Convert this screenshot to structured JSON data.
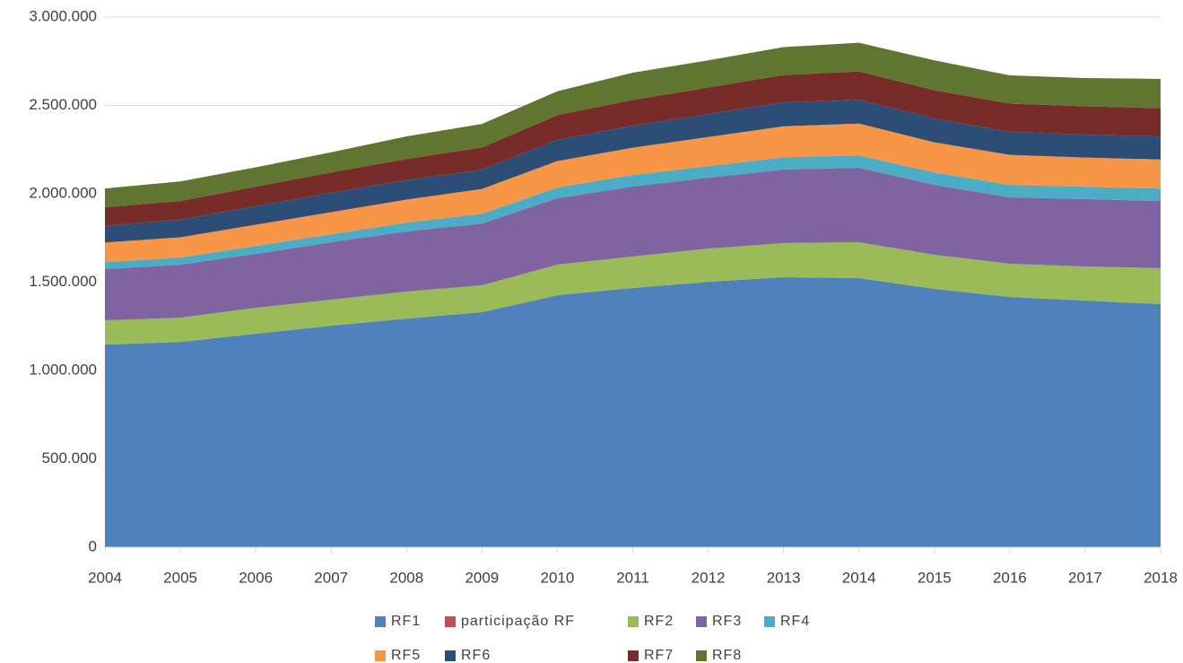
{
  "chart_data": {
    "type": "stacked-area",
    "categories": [
      "2004",
      "2005",
      "2006",
      "2007",
      "2008",
      "2009",
      "2010",
      "2011",
      "2012",
      "2013",
      "2014",
      "2015",
      "2016",
      "2017",
      "2018"
    ],
    "ylim": [
      0,
      3000000
    ],
    "yticks": [
      0,
      {
        "value": 500000,
        "label": "500.000"
      },
      {
        "value": 1000000,
        "label": "1.000.000"
      },
      {
        "value": 1500000,
        "label": "1.500.000"
      },
      {
        "value": 2000000,
        "label": "2.000.000"
      },
      {
        "value": 2500000,
        "label": "2.500.000"
      },
      {
        "value": 3000000,
        "label": "3.000.000"
      }
    ],
    "grid": true,
    "series": [
      {
        "name": "RF1",
        "color": "#4f81bd",
        "values": [
          1147000,
          1162000,
          1208000,
          1254000,
          1294000,
          1330000,
          1426000,
          1467000,
          1502000,
          1528000,
          1523000,
          1462000,
          1416000,
          1396000,
          1376000
        ]
      },
      {
        "name": "participação RF",
        "color": "#c0504d",
        "values": [
          0,
          0,
          0,
          0,
          0,
          0,
          0,
          0,
          0,
          0,
          0,
          0,
          0,
          0,
          0
        ]
      },
      {
        "name": "RF2",
        "color": "#9bbb59",
        "values": [
          137000,
          137000,
          147000,
          147000,
          153000,
          152000,
          173000,
          178000,
          188000,
          193000,
          203000,
          193000,
          188000,
          193000,
          203000
        ]
      },
      {
        "name": "RF3",
        "color": "#8064a2",
        "values": [
          290000,
          300000,
          305000,
          325000,
          340000,
          350000,
          376000,
          396000,
          401000,
          416000,
          421000,
          396000,
          376000,
          381000,
          380000
        ]
      },
      {
        "name": "RF4",
        "color": "#4bacc6",
        "values": [
          40000,
          40000,
          45000,
          45000,
          50000,
          55000,
          60000,
          65000,
          65000,
          70000,
          70000,
          70000,
          70000,
          70000,
          70000
        ]
      },
      {
        "name": "RF5",
        "color": "#f79646",
        "values": [
          110000,
          115000,
          120000,
          125000,
          130000,
          140000,
          150000,
          155000,
          165000,
          175000,
          180000,
          170000,
          170000,
          165000,
          165000
        ]
      },
      {
        "name": "RF6",
        "color": "#2c4d75",
        "values": [
          95000,
          100000,
          105000,
          110000,
          110000,
          110000,
          120000,
          125000,
          130000,
          135000,
          135000,
          135000,
          130000,
          130000,
          130000
        ]
      },
      {
        "name": "RF7",
        "color": "#772c2a",
        "values": [
          105000,
          105000,
          110000,
          115000,
          120000,
          125000,
          140000,
          145000,
          150000,
          155000,
          160000,
          160000,
          160000,
          160000,
          160000
        ]
      },
      {
        "name": "RF8",
        "color": "#5f7530",
        "values": [
          106000,
          111000,
          110000,
          114000,
          128000,
          133000,
          135000,
          154000,
          154000,
          158000,
          163000,
          169000,
          160000,
          160000,
          166000
        ]
      }
    ]
  }
}
